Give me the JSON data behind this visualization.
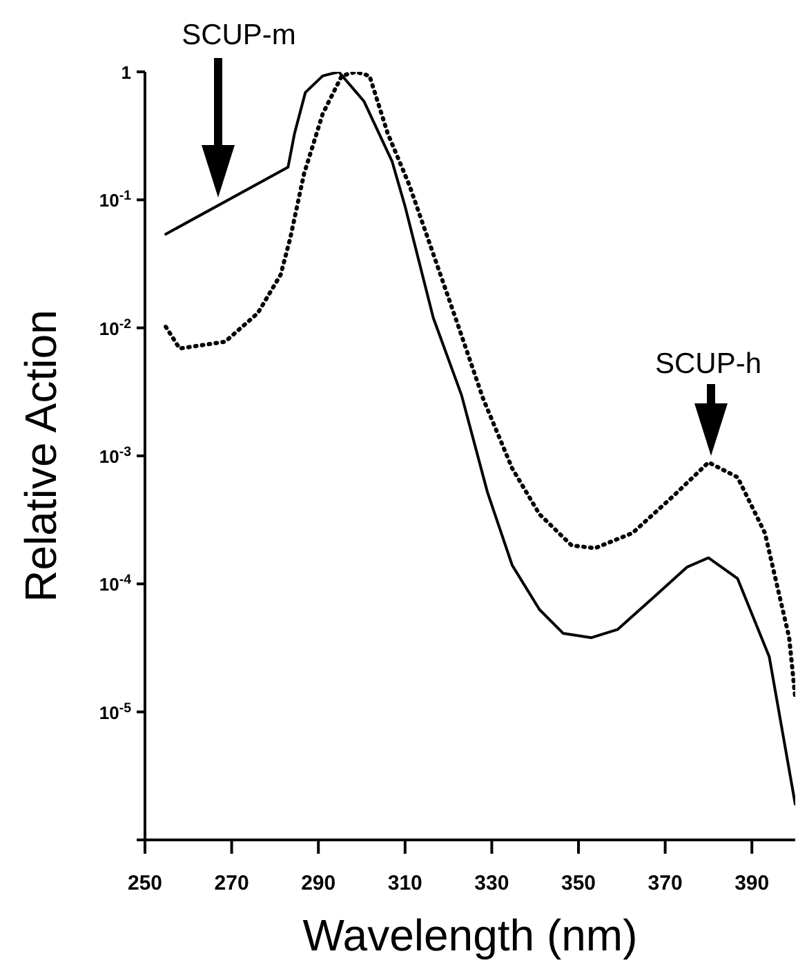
{
  "chart_data": {
    "type": "line",
    "xlabel": "Wavelength (nm)",
    "ylabel": "Relative Action",
    "log": "y",
    "grid": false,
    "legend": false,
    "marker": "none",
    "xlim": [
      250,
      400
    ],
    "xticks": [
      250,
      270,
      290,
      310,
      330,
      350,
      370,
      390
    ],
    "ylim": [
      1e-06,
      1
    ],
    "yticks": [
      {
        "value": 1e-06,
        "label": null
      },
      {
        "value": 1e-05,
        "label": "10$^{-5}$"
      },
      {
        "value": 0.0001,
        "label": "10$^{-4}$"
      },
      {
        "value": 0.001,
        "label": "10$^{-3}$"
      },
      {
        "value": 0.01,
        "label": "10$^{-2}$"
      },
      {
        "value": 0.1,
        "label": "10$^{-1}$"
      },
      1
    ],
    "series": [
      {
        "color": "#000000",
        "line_style": "solid",
        "x": [
          254.8,
          283,
          284.5,
          287,
          291,
          294.7,
          300.5,
          307,
          310,
          316.5,
          323,
          329,
          334.7,
          341,
          346.5,
          353,
          359,
          367.6,
          375,
          380,
          386.7,
          394,
          400
        ],
        "values": [
          0.054,
          0.18,
          0.33,
          0.69,
          0.93,
          1,
          0.59,
          0.2,
          0.089,
          0.012,
          0.003,
          0.00052,
          0.00014,
          6.3e-05,
          4.1e-05,
          3.8e-05,
          4.4e-05,
          8e-05,
          0.000135,
          0.00016,
          0.00011,
          2.7e-05,
          1.9e-06
        ]
      },
      {
        "color": "#000000",
        "line_style": "dotted",
        "x": [
          254.8,
          258,
          268.5,
          276,
          281.3,
          283.5,
          286.7,
          291,
          295.4,
          298.6,
          301.8,
          306,
          311,
          322,
          328,
          334.7,
          341,
          348.4,
          353.8,
          362.5,
          372,
          380,
          386.7,
          393,
          398.6,
          400
        ],
        "values": [
          0.0102,
          0.0069,
          0.0078,
          0.013,
          0.026,
          0.05,
          0.16,
          0.47,
          0.93,
          1,
          0.93,
          0.33,
          0.13,
          0.011,
          0.0028,
          0.0008,
          0.00035,
          0.0002,
          0.00019,
          0.00025,
          0.00049,
          0.00089,
          0.00068,
          0.00025,
          3.8e-05,
          1.3e-05
        ]
      }
    ],
    "annotations": [
      "SCUP-m",
      "SCUP-h"
    ]
  }
}
